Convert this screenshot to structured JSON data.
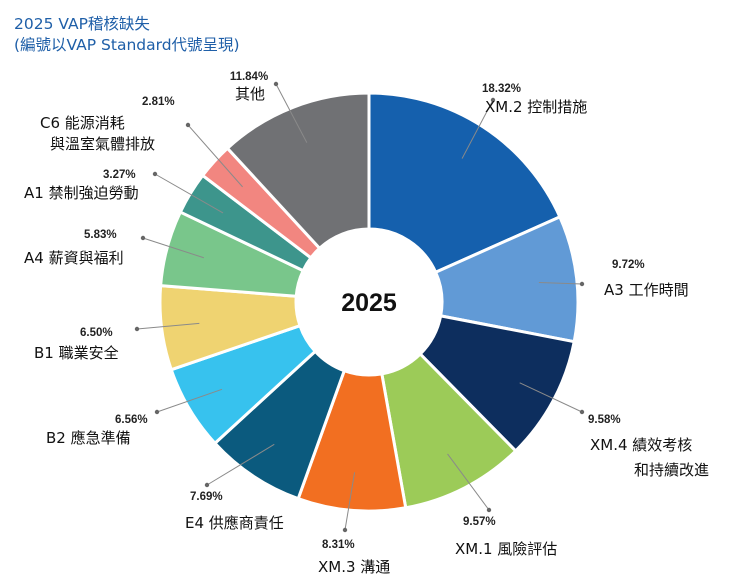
{
  "header": {
    "title": "2025 VAP稽核缺失",
    "subtitle": "(編號以VAP Standard代號呈現)"
  },
  "chart_data": {
    "type": "pie",
    "center_label": "2025",
    "title": "2025 VAP稽核缺失",
    "subtitle": "(編號以VAP Standard代號呈現)",
    "slices": [
      {
        "name_lines": [
          "XM.2 控制措施"
        ],
        "value": 18.32,
        "pct_label": "18.32%",
        "color": "#1560ad"
      },
      {
        "name_lines": [
          "A3 工作時間"
        ],
        "value": 9.72,
        "pct_label": "9.72%",
        "color": "#619ad6"
      },
      {
        "name_lines": [
          "XM.4 績效考核",
          "和持續改進"
        ],
        "value": 9.58,
        "pct_label": "9.58%",
        "color": "#0d2e5e"
      },
      {
        "name_lines": [
          "XM.1 風險評估"
        ],
        "value": 9.57,
        "pct_label": "9.57%",
        "color": "#9ccb58"
      },
      {
        "name_lines": [
          "XM.3 溝通"
        ],
        "value": 8.31,
        "pct_label": "8.31%",
        "color": "#f26f21"
      },
      {
        "name_lines": [
          "E4 供應商責任"
        ],
        "value": 7.69,
        "pct_label": "7.69%",
        "color": "#0b5a7e"
      },
      {
        "name_lines": [
          "B2 應急準備"
        ],
        "value": 6.56,
        "pct_label": "6.56%",
        "color": "#37c2ee"
      },
      {
        "name_lines": [
          "B1 職業安全"
        ],
        "value": 6.5,
        "pct_label": "6.50%",
        "color": "#efd371"
      },
      {
        "name_lines": [
          "A4 薪資與福利"
        ],
        "value": 5.83,
        "pct_label": "5.83%",
        "color": "#79c68b"
      },
      {
        "name_lines": [
          "A1 禁制強迫勞動"
        ],
        "value": 3.27,
        "pct_label": "3.27%",
        "color": "#3d958c"
      },
      {
        "name_lines": [
          "C6 能源消耗",
          "與溫室氣體排放"
        ],
        "value": 2.81,
        "pct_label": "2.81%",
        "color": "#f28680"
      },
      {
        "name_lines": [
          "其他"
        ],
        "value": 11.84,
        "pct_label": "11.84%",
        "color": "#707174"
      }
    ]
  }
}
